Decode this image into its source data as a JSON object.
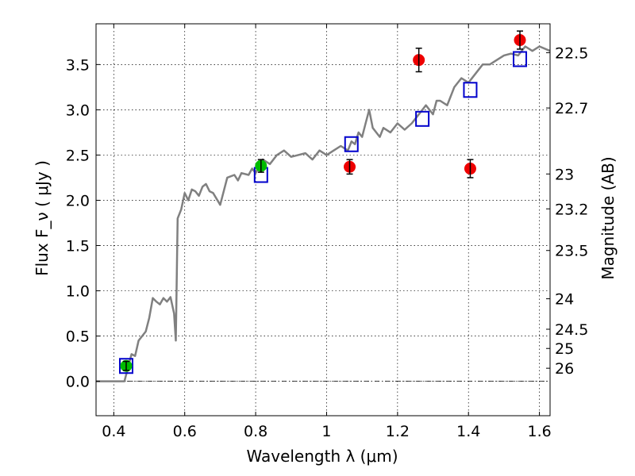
{
  "chart_data": {
    "type": "scatter",
    "xlabel": "Wavelength  λ (μm)",
    "ylabel": "Flux  F_ν  ( μJy )",
    "y2label": "Magnitude (AB)",
    "xlim": [
      0.35,
      1.63
    ],
    "ylim": [
      -0.38,
      3.95
    ],
    "grid": true,
    "x_ticks": [
      {
        "value": 0.4,
        "label": "0.4"
      },
      {
        "value": 0.6,
        "label": "0.6"
      },
      {
        "value": 0.8,
        "label": "0.8"
      },
      {
        "value": 1.0,
        "label": "1"
      },
      {
        "value": 1.2,
        "label": "1.2"
      },
      {
        "value": 1.4,
        "label": "1.4"
      },
      {
        "value": 1.6,
        "label": "1.6"
      }
    ],
    "y_ticks": [
      {
        "value": 0.0,
        "label": "0.0"
      },
      {
        "value": 0.5,
        "label": "0.5"
      },
      {
        "value": 1.0,
        "label": "1.0"
      },
      {
        "value": 1.5,
        "label": "1.5"
      },
      {
        "value": 2.0,
        "label": "2.0"
      },
      {
        "value": 2.5,
        "label": "2.5"
      },
      {
        "value": 3.0,
        "label": "3.0"
      },
      {
        "value": 3.5,
        "label": "3.5"
      }
    ],
    "y2_ticks": [
      {
        "mag": 22.5,
        "label": "22.5"
      },
      {
        "mag": 22.7,
        "label": "22.7"
      },
      {
        "mag": 23.0,
        "label": "23"
      },
      {
        "mag": 23.2,
        "label": "23.2"
      },
      {
        "mag": 23.5,
        "label": "23.5"
      },
      {
        "mag": 24.0,
        "label": "24"
      },
      {
        "mag": 24.5,
        "label": "24.5"
      },
      {
        "mag": 25.0,
        "label": "25"
      },
      {
        "mag": 26.0,
        "label": "26"
      }
    ],
    "series": [
      {
        "kind": "line",
        "color": "#808080",
        "x": [
          0.35,
          0.4,
          0.43,
          0.44,
          0.45,
          0.46,
          0.47,
          0.48,
          0.49,
          0.5,
          0.51,
          0.52,
          0.53,
          0.54,
          0.55,
          0.56,
          0.57,
          0.575,
          0.58,
          0.59,
          0.6,
          0.61,
          0.62,
          0.63,
          0.64,
          0.65,
          0.66,
          0.67,
          0.68,
          0.7,
          0.72,
          0.74,
          0.75,
          0.76,
          0.78,
          0.79,
          0.8,
          0.82,
          0.84,
          0.86,
          0.88,
          0.9,
          0.92,
          0.94,
          0.96,
          0.98,
          1.0,
          1.02,
          1.04,
          1.06,
          1.07,
          1.08,
          1.09,
          1.1,
          1.11,
          1.12,
          1.13,
          1.14,
          1.15,
          1.16,
          1.18,
          1.2,
          1.22,
          1.24,
          1.25,
          1.26,
          1.28,
          1.3,
          1.31,
          1.32,
          1.34,
          1.36,
          1.38,
          1.4,
          1.42,
          1.44,
          1.46,
          1.48,
          1.5,
          1.52,
          1.54,
          1.56,
          1.58,
          1.6,
          1.63
        ],
        "y": [
          0.0,
          0.0,
          0.0,
          0.15,
          0.3,
          0.28,
          0.45,
          0.5,
          0.55,
          0.7,
          0.92,
          0.88,
          0.85,
          0.92,
          0.88,
          0.93,
          0.75,
          0.45,
          1.8,
          1.9,
          2.08,
          2.0,
          2.12,
          2.1,
          2.05,
          2.15,
          2.18,
          2.1,
          2.08,
          1.95,
          2.25,
          2.28,
          2.22,
          2.3,
          2.28,
          2.35,
          2.3,
          2.45,
          2.4,
          2.5,
          2.55,
          2.48,
          2.5,
          2.52,
          2.45,
          2.55,
          2.5,
          2.55,
          2.6,
          2.55,
          2.65,
          2.62,
          2.75,
          2.7,
          2.85,
          3.0,
          2.8,
          2.75,
          2.7,
          2.8,
          2.75,
          2.85,
          2.78,
          2.85,
          2.9,
          2.95,
          3.05,
          2.95,
          3.1,
          3.1,
          3.05,
          3.25,
          3.35,
          3.3,
          3.4,
          3.5,
          3.5,
          3.55,
          3.6,
          3.62,
          3.6,
          3.7,
          3.65,
          3.7,
          3.65
        ]
      },
      {
        "kind": "model-photometry",
        "marker": "square",
        "color": "#0000cc",
        "x": [
          0.435,
          0.815,
          1.07,
          1.27,
          1.405,
          1.545
        ],
        "y": [
          0.17,
          2.28,
          2.62,
          2.9,
          3.22,
          3.56
        ]
      },
      {
        "kind": "observed",
        "marker": "circle",
        "color": "#ee0000",
        "x": [
          1.065,
          1.26,
          1.405,
          1.545
        ],
        "y": [
          2.37,
          3.55,
          2.35,
          3.77
        ],
        "err": [
          0.08,
          0.13,
          0.1,
          0.1
        ]
      },
      {
        "kind": "observed",
        "marker": "circle",
        "color": "#00bb00",
        "x": [
          0.435,
          0.815
        ],
        "y": [
          0.17,
          2.38
        ],
        "err": [
          0.05,
          0.07
        ]
      }
    ]
  }
}
